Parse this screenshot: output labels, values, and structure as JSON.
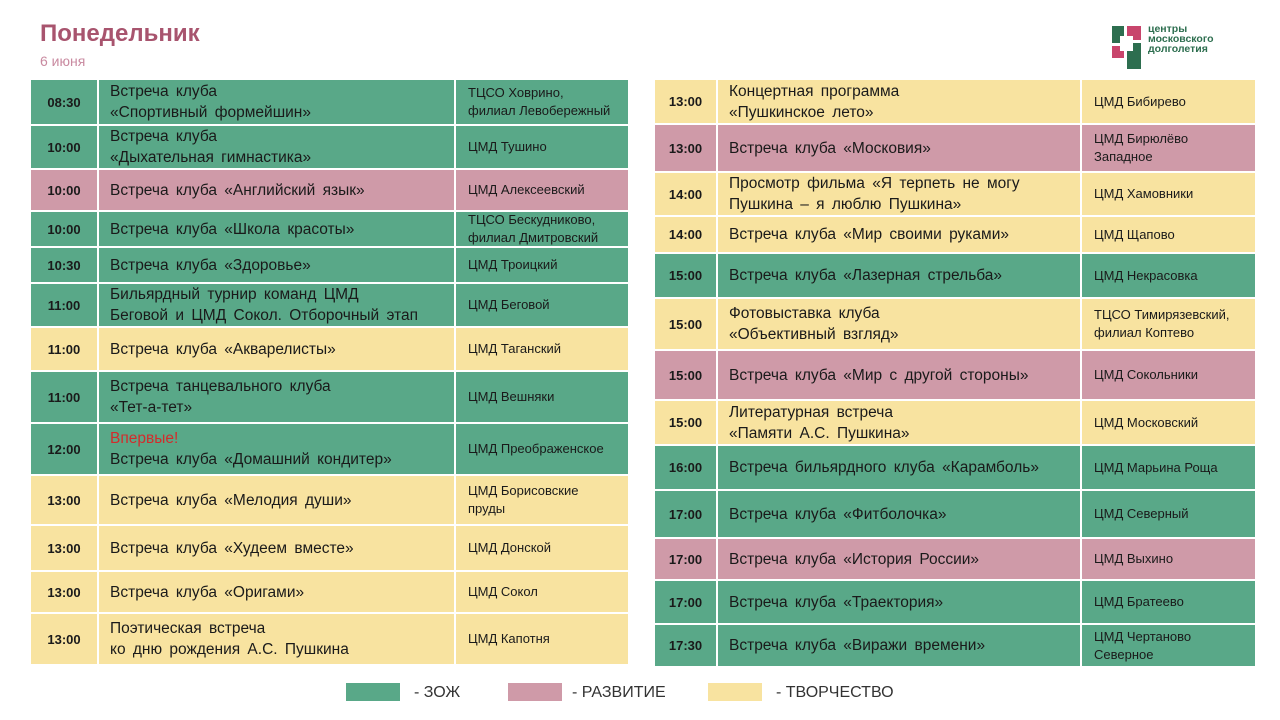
{
  "header": {
    "title": "Понедельник",
    "date": "6 июня"
  },
  "logo": {
    "lines": [
      "центры",
      "московского",
      "долголетия"
    ]
  },
  "colors": {
    "zoj": "#59a888",
    "razv": "#cf9aa8",
    "tvor": "#f8e3a0",
    "title": "#a8546e"
  },
  "left": [
    {
      "time": "08:30",
      "cat": "zoj",
      "lines": [
        "Встреча клуба",
        "«Спортивный  формейшин»"
      ],
      "place": [
        "ТЦСО Ховрино,",
        "филиал Левобережный"
      ]
    },
    {
      "time": "10:00",
      "cat": "zoj",
      "lines": [
        "Встреча клуба",
        "«Дыхательная  гимнастика»"
      ],
      "place": [
        "ЦМД Тушино"
      ]
    },
    {
      "time": "10:00",
      "cat": "razv",
      "lines": [
        "Встреча клуба «Английский язык»"
      ],
      "place": [
        "ЦМД Алексеевский"
      ]
    },
    {
      "time": "10:00",
      "cat": "zoj",
      "lines": [
        "Встреча клуба «Школа красоты»"
      ],
      "place": [
        "ТЦСО Бескудниково,",
        "филиал Дмитровский"
      ]
    },
    {
      "time": "10:30",
      "cat": "zoj",
      "lines": [
        "Встреча клуба «Здоровье»"
      ],
      "place": [
        "ЦМД Троицкий"
      ]
    },
    {
      "time": "11:00",
      "cat": "zoj",
      "lines": [
        "Бильярдный турнир команд ЦМД",
        "Беговой и ЦМД Сокол. Отборочный  этап"
      ],
      "place": [
        "ЦМД Беговой"
      ]
    },
    {
      "time": "11:00",
      "cat": "tvor",
      "lines": [
        "Встреча клуба «Акварелисты»"
      ],
      "place": [
        "ЦМД Таганский"
      ]
    },
    {
      "time": "11:00",
      "cat": "zoj",
      "lines": [
        "Встреча танцевального  клуба",
        "«Тет-а-тет»"
      ],
      "place": [
        "ЦМД Вешняки"
      ]
    },
    {
      "time": "12:00",
      "cat": "zoj",
      "first": "Впервые!",
      "lines": [
        "Встреча клуба «Домашний кондитер»"
      ],
      "place": [
        "ЦМД Преображенское"
      ]
    },
    {
      "time": "13:00",
      "cat": "tvor",
      "lines": [
        "Встреча клуба «Мелодия души»"
      ],
      "place": [
        "ЦМД Борисовские",
        "пруды"
      ]
    },
    {
      "time": "13:00",
      "cat": "tvor",
      "lines": [
        "Встреча клуба «Худеем вместе»"
      ],
      "place": [
        "ЦМД Донской"
      ]
    },
    {
      "time": "13:00",
      "cat": "tvor",
      "lines": [
        "Встреча клуба «Оригами»"
      ],
      "place": [
        "ЦМД Сокол"
      ]
    },
    {
      "time": "13:00",
      "cat": "tvor",
      "lines": [
        "Поэтическая встреча",
        "ко дню рождения А.С. Пушкина"
      ],
      "place": [
        "ЦМД Капотня"
      ]
    }
  ],
  "right": [
    {
      "time": "13:00",
      "cat": "tvor",
      "lines": [
        "Концертная программа",
        "«Пушкинское лето»"
      ],
      "place": [
        "ЦМД Бибирево"
      ]
    },
    {
      "time": "13:00",
      "cat": "razv",
      "lines": [
        "Встреча клуба «Московия»"
      ],
      "place": [
        "ЦМД Бирюлёво",
        "Западное"
      ]
    },
    {
      "time": "14:00",
      "cat": "tvor",
      "lines": [
        "Просмотр фильма «Я терпеть не могу",
        "Пушкина – я люблю Пушкина»"
      ],
      "place": [
        "ЦМД Хамовники"
      ]
    },
    {
      "time": "14:00",
      "cat": "tvor",
      "lines": [
        "Встреча клуба «Мир своими руками»"
      ],
      "place": [
        "ЦМД Щапово"
      ]
    },
    {
      "time": "15:00",
      "cat": "zoj",
      "lines": [
        "Встреча клуба «Лазерная стрельба»"
      ],
      "place": [
        "ЦМД Некрасовка"
      ]
    },
    {
      "time": "15:00",
      "cat": "tvor",
      "lines": [
        "Фотовыставка клуба",
        "«Объективный взгляд»"
      ],
      "place": [
        "ТЦСО Тимирязевский,",
        "филиал Коптево"
      ]
    },
    {
      "time": "15:00",
      "cat": "razv",
      "lines": [
        "Встреча клуба «Мир с другой стороны»"
      ],
      "place": [
        "ЦМД Сокольники"
      ]
    },
    {
      "time": "15:00",
      "cat": "tvor",
      "lines": [
        "Литературная  встреча",
        "«Памяти А.С. Пушкина»"
      ],
      "place": [
        "ЦМД Московский"
      ]
    },
    {
      "time": "16:00",
      "cat": "zoj",
      "lines": [
        "Встреча бильярдного клуба «Карамболь»"
      ],
      "place": [
        "ЦМД Марьина Роща"
      ]
    },
    {
      "time": "17:00",
      "cat": "zoj",
      "lines": [
        "Встреча клуба «Фитболочка»"
      ],
      "place": [
        "ЦМД Северный"
      ]
    },
    {
      "time": "17:00",
      "cat": "razv",
      "lines": [
        "Встреча клуба «История России»"
      ],
      "place": [
        "ЦМД Выхино"
      ]
    },
    {
      "time": "17:00",
      "cat": "zoj",
      "lines": [
        "Встреча клуба «Траектория»"
      ],
      "place": [
        "ЦМД Братеево"
      ]
    },
    {
      "time": "17:30",
      "cat": "zoj",
      "lines": [
        "Встреча клуба «Виражи времени»"
      ],
      "place": [
        "ЦМД Чертаново",
        "Северное"
      ]
    }
  ],
  "legend": [
    {
      "cat": "zoj",
      "label": "- ЗОЖ"
    },
    {
      "cat": "razv",
      "label": "- РАЗВИТИЕ"
    },
    {
      "cat": "tvor",
      "label": "- ТВОРЧЕСТВО"
    }
  ]
}
